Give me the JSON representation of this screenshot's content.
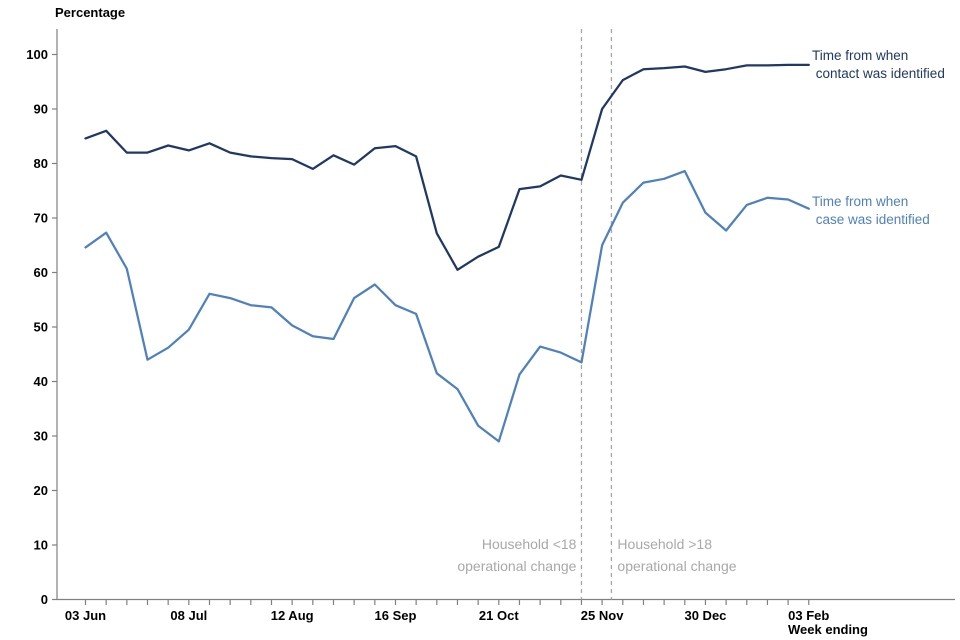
{
  "chart_data": {
    "type": "line",
    "ylabel": "Percentage",
    "xlabel": "Week ending",
    "ylim": [
      0,
      100
    ],
    "y_tick_step": 10,
    "n_points": 36,
    "grid": false,
    "x_tick_positions": [
      0,
      5,
      10,
      15,
      20,
      25,
      30,
      35
    ],
    "x_tick_labels": [
      "03 Jun",
      "08 Jul",
      "12 Aug",
      "16 Sep",
      "21 Oct",
      "25 Nov",
      "30 Dec",
      "03 Feb"
    ],
    "series": [
      {
        "name": "Time from when contact was identified",
        "label_lines": [
          "Time from when",
          " contact was identified"
        ],
        "color": "#1F3864",
        "values": [
          84.6,
          86.0,
          82.0,
          82.0,
          83.3,
          82.4,
          83.7,
          82.0,
          81.3,
          81.0,
          80.8,
          79.0,
          81.5,
          79.8,
          82.8,
          83.2,
          81.3,
          67.2,
          60.5,
          62.9,
          64.7,
          75.3,
          75.8,
          77.8,
          77.0,
          90.0,
          95.3,
          97.3,
          97.5,
          97.8,
          96.8,
          97.3,
          98.0,
          98.0,
          98.1,
          98.1
        ]
      },
      {
        "name": "Time from when case was identified",
        "label_lines": [
          "Time from when",
          " case was identified"
        ],
        "color": "#4F81BD",
        "values": [
          64.6,
          67.3,
          60.7,
          44.0,
          46.2,
          49.5,
          56.1,
          55.3,
          54.0,
          53.6,
          50.3,
          48.3,
          47.8,
          55.3,
          57.8,
          54.0,
          52.4,
          41.5,
          38.6,
          31.9,
          29.0,
          41.3,
          46.4,
          45.3,
          43.5,
          65.0,
          72.8,
          76.5,
          77.2,
          78.6,
          71.0,
          67.7,
          72.4,
          73.7,
          73.4,
          71.7
        ]
      }
    ],
    "annotations": [
      {
        "lines": [
          "Household <18",
          "operational change"
        ],
        "at_week": 24.0,
        "align": "right"
      },
      {
        "lines": [
          "Household >18",
          "operational change"
        ],
        "at_week": 25.45,
        "align": "left"
      }
    ],
    "colors": {
      "contact_line": "#1F3864",
      "case_line": "#4F81BD",
      "annotation_gray": "#A8A8A8",
      "axis": "#808080",
      "dashed_line": "#A6A6A6"
    }
  }
}
